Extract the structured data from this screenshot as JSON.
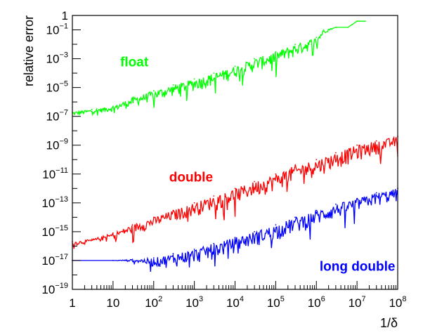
{
  "chart_data": {
    "type": "line",
    "title": "",
    "xlabel": "1/δ",
    "ylabel": "relative error",
    "xscale": "log",
    "yscale": "log",
    "xlim": [
      1,
      100000000
    ],
    "ylim": [
      1e-19,
      1
    ],
    "grid": false,
    "legend": "inline labels",
    "x_ticks": [
      {
        "base": "1",
        "exp": ""
      },
      {
        "base": "10",
        "exp": ""
      },
      {
        "base": "10",
        "exp": "2"
      },
      {
        "base": "10",
        "exp": "3"
      },
      {
        "base": "10",
        "exp": "4"
      },
      {
        "base": "10",
        "exp": "5"
      },
      {
        "base": "10",
        "exp": "6"
      },
      {
        "base": "10",
        "exp": "7"
      },
      {
        "base": "10",
        "exp": "8"
      }
    ],
    "y_ticks": [
      {
        "base": "1",
        "exp": ""
      },
      {
        "base": "10",
        "exp": "−1"
      },
      {
        "base": "10",
        "exp": "−3"
      },
      {
        "base": "10",
        "exp": "−5"
      },
      {
        "base": "10",
        "exp": "−7"
      },
      {
        "base": "10",
        "exp": "−9"
      },
      {
        "base": "10",
        "exp": "−11"
      },
      {
        "base": "10",
        "exp": "−13"
      },
      {
        "base": "10",
        "exp": "−15"
      },
      {
        "base": "10",
        "exp": "−17"
      },
      {
        "base": "10",
        "exp": "−19"
      }
    ],
    "series": [
      {
        "name": "float",
        "color": "#00ff00",
        "x": [
          1,
          3,
          10,
          30,
          100,
          300,
          1000,
          3000,
          10000,
          30000,
          100000,
          300000,
          1000000,
          1500000,
          3000000,
          6000000,
          10000000,
          16000000
        ],
        "y": [
          2e-07,
          3e-07,
          5e-07,
          2e-06,
          6e-06,
          1.5e-05,
          4e-05,
          0.0001,
          0.0003,
          0.001,
          0.003,
          0.01,
          0.03,
          0.1,
          0.15,
          0.15,
          0.4,
          0.4
        ],
        "min": [
          1e-07,
          1.5e-07,
          2e-07,
          4e-07,
          1e-06,
          2e-06,
          5e-06,
          1e-05,
          4e-05,
          0.0001,
          0.0003,
          0.001,
          0.005,
          0.05,
          0.15,
          0.15,
          0.4,
          0.4
        ]
      },
      {
        "name": "double",
        "color": "#ff0000",
        "x": [
          1,
          3,
          10,
          30,
          100,
          300,
          1000,
          3000,
          10000,
          30000,
          100000,
          300000,
          1000000,
          3000000,
          10000000,
          30000000,
          100000000
        ],
        "y": [
          2e-16,
          3e-16,
          8e-16,
          3e-15,
          1e-14,
          3e-14,
          1e-13,
          3e-13,
          1e-12,
          3e-12,
          1e-11,
          4e-11,
          1e-10,
          3e-10,
          1e-09,
          2e-09,
          4e-09
        ],
        "min": [
          1e-16,
          1.5e-16,
          3e-16,
          6e-16,
          1.5e-15,
          4e-15,
          1e-14,
          3e-14,
          6e-14,
          2e-13,
          6e-13,
          2e-12,
          6e-12,
          2e-11,
          6e-11,
          2e-10,
          5e-10
        ]
      },
      {
        "name": "long double",
        "color": "#0000ff",
        "x": [
          1,
          10,
          30,
          100,
          300,
          1000,
          3000,
          10000,
          30000,
          100000,
          300000,
          1000000,
          3000000,
          10000000,
          30000000,
          100000000
        ],
        "y": [
          1e-17,
          1e-17,
          1.2e-17,
          1.5e-17,
          3e-17,
          6e-17,
          1.5e-16,
          4e-16,
          1e-15,
          3e-15,
          1e-14,
          3e-14,
          8e-14,
          2e-13,
          5e-13,
          1e-12
        ],
        "min": [
          1e-17,
          1e-17,
          8e-18,
          3e-18,
          3e-18,
          5e-18,
          1e-17,
          3e-17,
          8e-17,
          2e-16,
          6e-16,
          2e-15,
          6e-15,
          2e-14,
          5e-14,
          1e-13
        ]
      }
    ],
    "annotations": [
      {
        "text": "float",
        "color": "#00ff00",
        "at_x": 15,
        "at_y": 0.0003
      },
      {
        "text": "double",
        "color": "#ff0000",
        "at_x": 240,
        "at_y": 3e-12
      },
      {
        "text": "long double",
        "color": "#0000ff",
        "at_x": 1200000,
        "at_y": 2e-18
      }
    ]
  }
}
